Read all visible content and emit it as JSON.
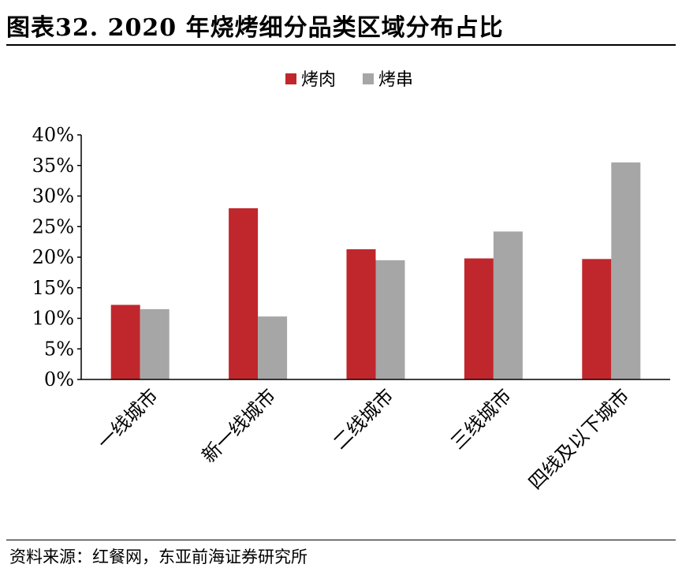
{
  "header": {
    "title": "图表32. 2020 年烧烤细分品类区域分布占比"
  },
  "footer": {
    "source": "资料来源：红餐网，东亚前海证券研究所"
  },
  "colors": {
    "series1": "#c0272d",
    "series2": "#a6a6a6",
    "axis": "#000000"
  },
  "chart_data": {
    "type": "bar",
    "title": "",
    "xlabel": "",
    "ylabel": "",
    "categories": [
      "一线城市",
      "新一线城市",
      "二线城市",
      "三线城市",
      "四线及以下城市"
    ],
    "series": [
      {
        "name": "烤肉",
        "values": [
          12.2,
          28.0,
          21.3,
          19.8,
          19.7
        ]
      },
      {
        "name": "烤串",
        "values": [
          11.5,
          10.3,
          19.5,
          24.2,
          35.5
        ]
      }
    ],
    "ylim": [
      0,
      40
    ],
    "yticks": [
      "0%",
      "5%",
      "10%",
      "15%",
      "20%",
      "25%",
      "30%",
      "35%",
      "40%"
    ],
    "legend_position": "top-center",
    "grid": false
  }
}
